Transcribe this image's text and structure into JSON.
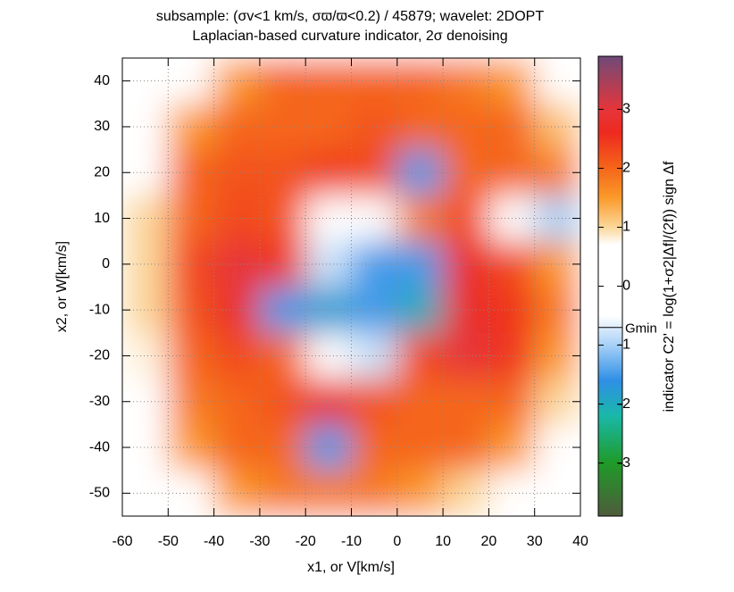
{
  "chart_data": {
    "type": "heatmap",
    "title": "subsample: (σv<1 km/s, σϖ/ϖ<0.2) / 45879; wavelet: 2DOPT",
    "subtitle": "Laplacian-based curvature indicator, 2σ denoising",
    "x_label": "x1, or V[km/s]",
    "y_label": "x2, or W[km/s]",
    "colorbar_label": "indicator C2' = log(1+σ2|Δf|/(2f)) sign Δf",
    "x": [
      -55,
      -45,
      -35,
      -25,
      -15,
      -5,
      5,
      15,
      25,
      35
    ],
    "y": [
      40,
      30,
      20,
      10,
      0,
      -10,
      -20,
      -30,
      -40,
      -50
    ],
    "z": [
      [
        0,
        0,
        1.5,
        2,
        2,
        2,
        2,
        1.8,
        1.5,
        0
      ],
      [
        0,
        1.5,
        2,
        2,
        2,
        2.2,
        2,
        2,
        2,
        1.2
      ],
      [
        0,
        2,
        2.2,
        2.2,
        2.4,
        2.3,
        -1.5,
        2,
        2,
        1.8
      ],
      [
        1,
        2,
        2.3,
        2.2,
        0.5,
        0.5,
        1.8,
        2.3,
        0.5,
        -1
      ],
      [
        1,
        2.3,
        3,
        2.5,
        -0.8,
        -1.5,
        -1.5,
        2.8,
        2.3,
        1.5
      ],
      [
        1,
        2.2,
        2.8,
        -1.5,
        -1.8,
        -1.5,
        -2,
        2.8,
        2.5,
        1.8
      ],
      [
        0.8,
        2,
        2.3,
        2,
        -0.5,
        -0.8,
        2.3,
        3,
        2.5,
        1.5
      ],
      [
        0.5,
        1.8,
        2,
        2.2,
        2.8,
        2.2,
        2,
        2,
        2,
        1
      ],
      [
        0,
        1.5,
        2,
        2,
        -1.5,
        2,
        2,
        2,
        1.5,
        0
      ],
      [
        0,
        0.5,
        1.5,
        1.8,
        1.8,
        1.8,
        1.5,
        1,
        0,
        0
      ]
    ],
    "xlim": [
      -60,
      40
    ],
    "ylim": [
      -55,
      45
    ],
    "xticks": [
      -60,
      -50,
      -40,
      -30,
      -20,
      -10,
      0,
      10,
      20,
      30,
      40
    ],
    "yticks": [
      -50,
      -40,
      -30,
      -20,
      -10,
      0,
      10,
      20,
      30,
      40
    ],
    "zlim": [
      -3.9,
      3.9
    ],
    "zticks": [
      -3,
      -2,
      -1,
      0,
      1,
      2,
      3
    ],
    "gmin": {
      "value": -0.7,
      "label": "Gmin"
    },
    "grid": true,
    "colorscale": [
      [
        -3.9,
        "#4f5b3c"
      ],
      [
        -3,
        "#1f9a28"
      ],
      [
        -2.2,
        "#19b8a8"
      ],
      [
        -1.6,
        "#2f8fe6"
      ],
      [
        -1,
        "#a6d0f7"
      ],
      [
        -0.5,
        "#ffffff"
      ],
      [
        0.7,
        "#ffffff"
      ],
      [
        1,
        "#fbd79a"
      ],
      [
        1.5,
        "#fb9a2a"
      ],
      [
        2,
        "#f5661a"
      ],
      [
        2.6,
        "#ee2a1f"
      ],
      [
        3,
        "#e6353a"
      ],
      [
        3.9,
        "#6f4a78"
      ]
    ]
  }
}
